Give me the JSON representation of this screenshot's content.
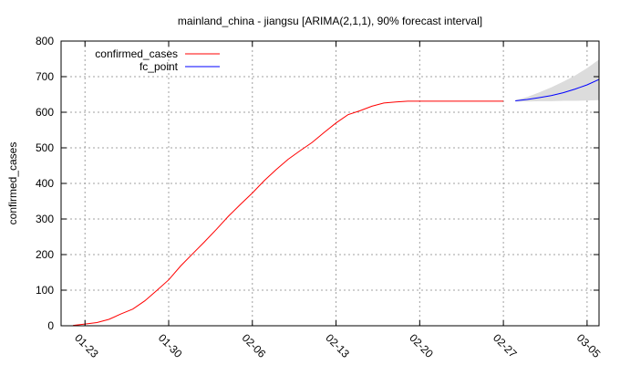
{
  "chart_data": {
    "type": "line",
    "title": "mainland_china - jiangsu [ARIMA(2,1,1), 90% forecast interval]",
    "xlabel": "",
    "ylabel": "confirmed_cases",
    "ylim": [
      0,
      800
    ],
    "yticks": [
      0,
      100,
      200,
      300,
      400,
      500,
      600,
      700,
      800
    ],
    "xlim": [
      "2020-01-21",
      "2020-03-06"
    ],
    "xticks": [
      {
        "date": "2020-01-23",
        "label": "01-23"
      },
      {
        "date": "2020-01-30",
        "label": "01-30"
      },
      {
        "date": "2020-02-06",
        "label": "02-06"
      },
      {
        "date": "2020-02-13",
        "label": "02-13"
      },
      {
        "date": "2020-02-20",
        "label": "02-20"
      },
      {
        "date": "2020-02-27",
        "label": "02-27"
      },
      {
        "date": "2020-03-05",
        "label": "03-05"
      }
    ],
    "grid": true,
    "legend_position": "top-left",
    "series": [
      {
        "name": "confirmed_cases",
        "color": "#ff0000",
        "x": [
          "2020-01-22",
          "2020-01-23",
          "2020-01-24",
          "2020-01-25",
          "2020-01-26",
          "2020-01-27",
          "2020-01-28",
          "2020-01-29",
          "2020-01-30",
          "2020-01-31",
          "2020-02-01",
          "2020-02-02",
          "2020-02-03",
          "2020-02-04",
          "2020-02-05",
          "2020-02-06",
          "2020-02-07",
          "2020-02-08",
          "2020-02-09",
          "2020-02-10",
          "2020-02-11",
          "2020-02-12",
          "2020-02-13",
          "2020-02-14",
          "2020-02-15",
          "2020-02-16",
          "2020-02-17",
          "2020-02-18",
          "2020-02-19",
          "2020-02-20",
          "2020-02-21",
          "2020-02-22",
          "2020-02-23",
          "2020-02-24",
          "2020-02-25",
          "2020-02-26",
          "2020-02-27"
        ],
        "values": [
          1,
          5,
          9,
          18,
          33,
          47,
          70,
          99,
          129,
          168,
          202,
          236,
          271,
          308,
          341,
          373,
          408,
          439,
          468,
          492,
          515,
          543,
          570,
          593,
          604,
          617,
          626,
          629,
          631,
          631,
          631,
          631,
          631,
          631,
          631,
          631,
          631
        ]
      },
      {
        "name": "fc_point",
        "color": "#0000ff",
        "x": [
          "2020-02-28",
          "2020-02-29",
          "2020-03-01",
          "2020-03-02",
          "2020-03-03",
          "2020-03-04",
          "2020-03-05",
          "2020-03-06"
        ],
        "values": [
          632,
          636,
          641,
          647,
          655,
          665,
          677,
          692
        ]
      }
    ],
    "interval": {
      "color": "#dcdcdc",
      "x": [
        "2020-02-28",
        "2020-02-29",
        "2020-03-01",
        "2020-03-02",
        "2020-03-03",
        "2020-03-04",
        "2020-03-05",
        "2020-03-06"
      ],
      "lower": [
        630,
        630,
        631,
        631,
        632,
        632,
        633,
        634
      ],
      "upper": [
        634,
        643,
        656,
        670,
        686,
        703,
        724,
        748
      ]
    }
  }
}
